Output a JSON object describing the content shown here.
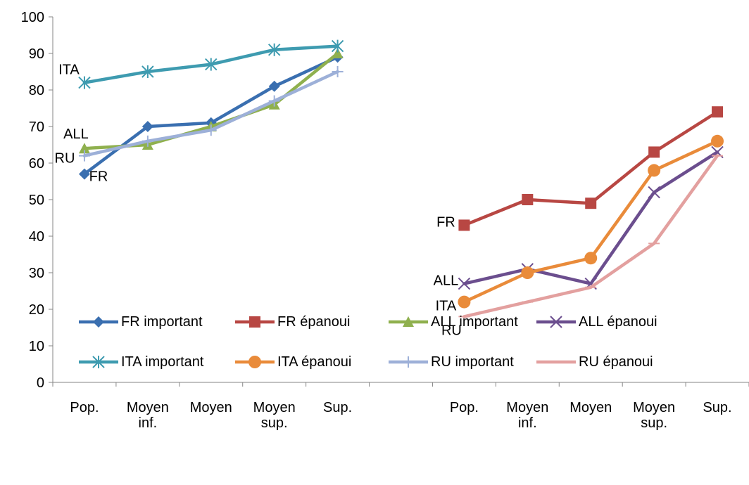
{
  "chart_data": {
    "type": "line",
    "ylim": [
      0,
      100
    ],
    "yticks": [
      0,
      10,
      20,
      30,
      40,
      50,
      60,
      70,
      80,
      90,
      100
    ],
    "categories": [
      "Pop.",
      "Moyen inf.",
      "Moyen",
      "Moyen sup.",
      "Sup.",
      "",
      "Pop.",
      "Moyen inf.",
      "Moyen",
      "Moyen sup.",
      "Sup."
    ],
    "grid": false,
    "legend_position": "bottom",
    "series": [
      {
        "name": "FR important",
        "color": "#3A6FB0",
        "marker": "diamond",
        "values": [
          57,
          70,
          71,
          81,
          89,
          null,
          null,
          null,
          null,
          null,
          null
        ]
      },
      {
        "name": "FR épanoui",
        "color": "#B84743",
        "marker": "square",
        "values": [
          null,
          null,
          null,
          null,
          null,
          null,
          43,
          50,
          49,
          63,
          74
        ]
      },
      {
        "name": "ALL important",
        "color": "#8FB04E",
        "marker": "triangle",
        "values": [
          64,
          65,
          70,
          76,
          90,
          null,
          null,
          null,
          null,
          null,
          null
        ]
      },
      {
        "name": "ALL épanoui",
        "color": "#6B4E8E",
        "marker": "x",
        "values": [
          null,
          null,
          null,
          null,
          null,
          null,
          27,
          31,
          27,
          52,
          63
        ]
      },
      {
        "name": "ITA important",
        "color": "#3E9BB0",
        "marker": "star",
        "values": [
          82,
          85,
          87,
          91,
          92,
          null,
          null,
          null,
          null,
          null,
          null
        ]
      },
      {
        "name": "ITA épanoui",
        "color": "#E98B3A",
        "marker": "circle",
        "values": [
          null,
          null,
          null,
          null,
          null,
          null,
          22,
          30,
          34,
          58,
          66
        ]
      },
      {
        "name": "RU important",
        "color": "#9DB0D8",
        "marker": "plus",
        "values": [
          62,
          66,
          69,
          77,
          85,
          null,
          null,
          null,
          null,
          null,
          null
        ]
      },
      {
        "name": "RU épanoui",
        "color": "#E3A09F",
        "marker": "dash",
        "values": [
          null,
          null,
          null,
          null,
          null,
          null,
          18,
          22,
          26,
          38,
          62
        ]
      }
    ],
    "annotations": [
      {
        "text": "ITA",
        "category": 0,
        "value": 82
      },
      {
        "text": "ALL",
        "category": 0,
        "value": 64
      },
      {
        "text": "RU",
        "category": 0,
        "value": 62
      },
      {
        "text": "FR",
        "category": 0,
        "value": 57
      },
      {
        "text": "FR",
        "category": 6,
        "value": 43
      },
      {
        "text": "ALL",
        "category": 6,
        "value": 27
      },
      {
        "text": "ITA",
        "category": 6,
        "value": 22
      },
      {
        "text": "RU",
        "category": 6,
        "value": 18
      }
    ]
  }
}
